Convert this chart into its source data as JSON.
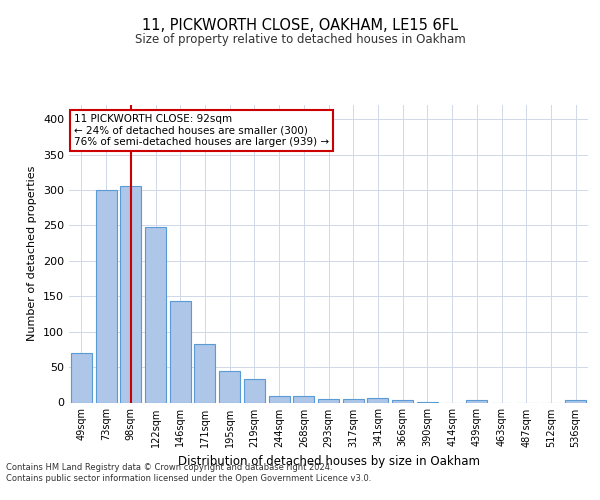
{
  "title1": "11, PICKWORTH CLOSE, OAKHAM, LE15 6FL",
  "title2": "Size of property relative to detached houses in Oakham",
  "xlabel": "Distribution of detached houses by size in Oakham",
  "ylabel": "Number of detached properties",
  "categories": [
    "49sqm",
    "73sqm",
    "98sqm",
    "122sqm",
    "146sqm",
    "171sqm",
    "195sqm",
    "219sqm",
    "244sqm",
    "268sqm",
    "293sqm",
    "317sqm",
    "341sqm",
    "366sqm",
    "390sqm",
    "414sqm",
    "439sqm",
    "463sqm",
    "487sqm",
    "512sqm",
    "536sqm"
  ],
  "values": [
    70,
    300,
    305,
    248,
    143,
    83,
    45,
    33,
    9,
    9,
    5,
    5,
    6,
    3,
    1,
    0,
    3,
    0,
    0,
    0,
    3
  ],
  "bar_color": "#aec6e8",
  "bar_edge_color": "#5b9bd5",
  "property_line_index": 2,
  "property_line_color": "#cc0000",
  "annotation_text": "11 PICKWORTH CLOSE: 92sqm\n← 24% of detached houses are smaller (300)\n76% of semi-detached houses are larger (939) →",
  "annotation_box_color": "#ffffff",
  "annotation_box_edge_color": "#cc0000",
  "ylim": [
    0,
    420
  ],
  "yticks": [
    0,
    50,
    100,
    150,
    200,
    250,
    300,
    350,
    400
  ],
  "grid_color": "#d0d8e8",
  "background_color": "#ffffff",
  "footer1": "Contains HM Land Registry data © Crown copyright and database right 2024.",
  "footer2": "Contains public sector information licensed under the Open Government Licence v3.0."
}
